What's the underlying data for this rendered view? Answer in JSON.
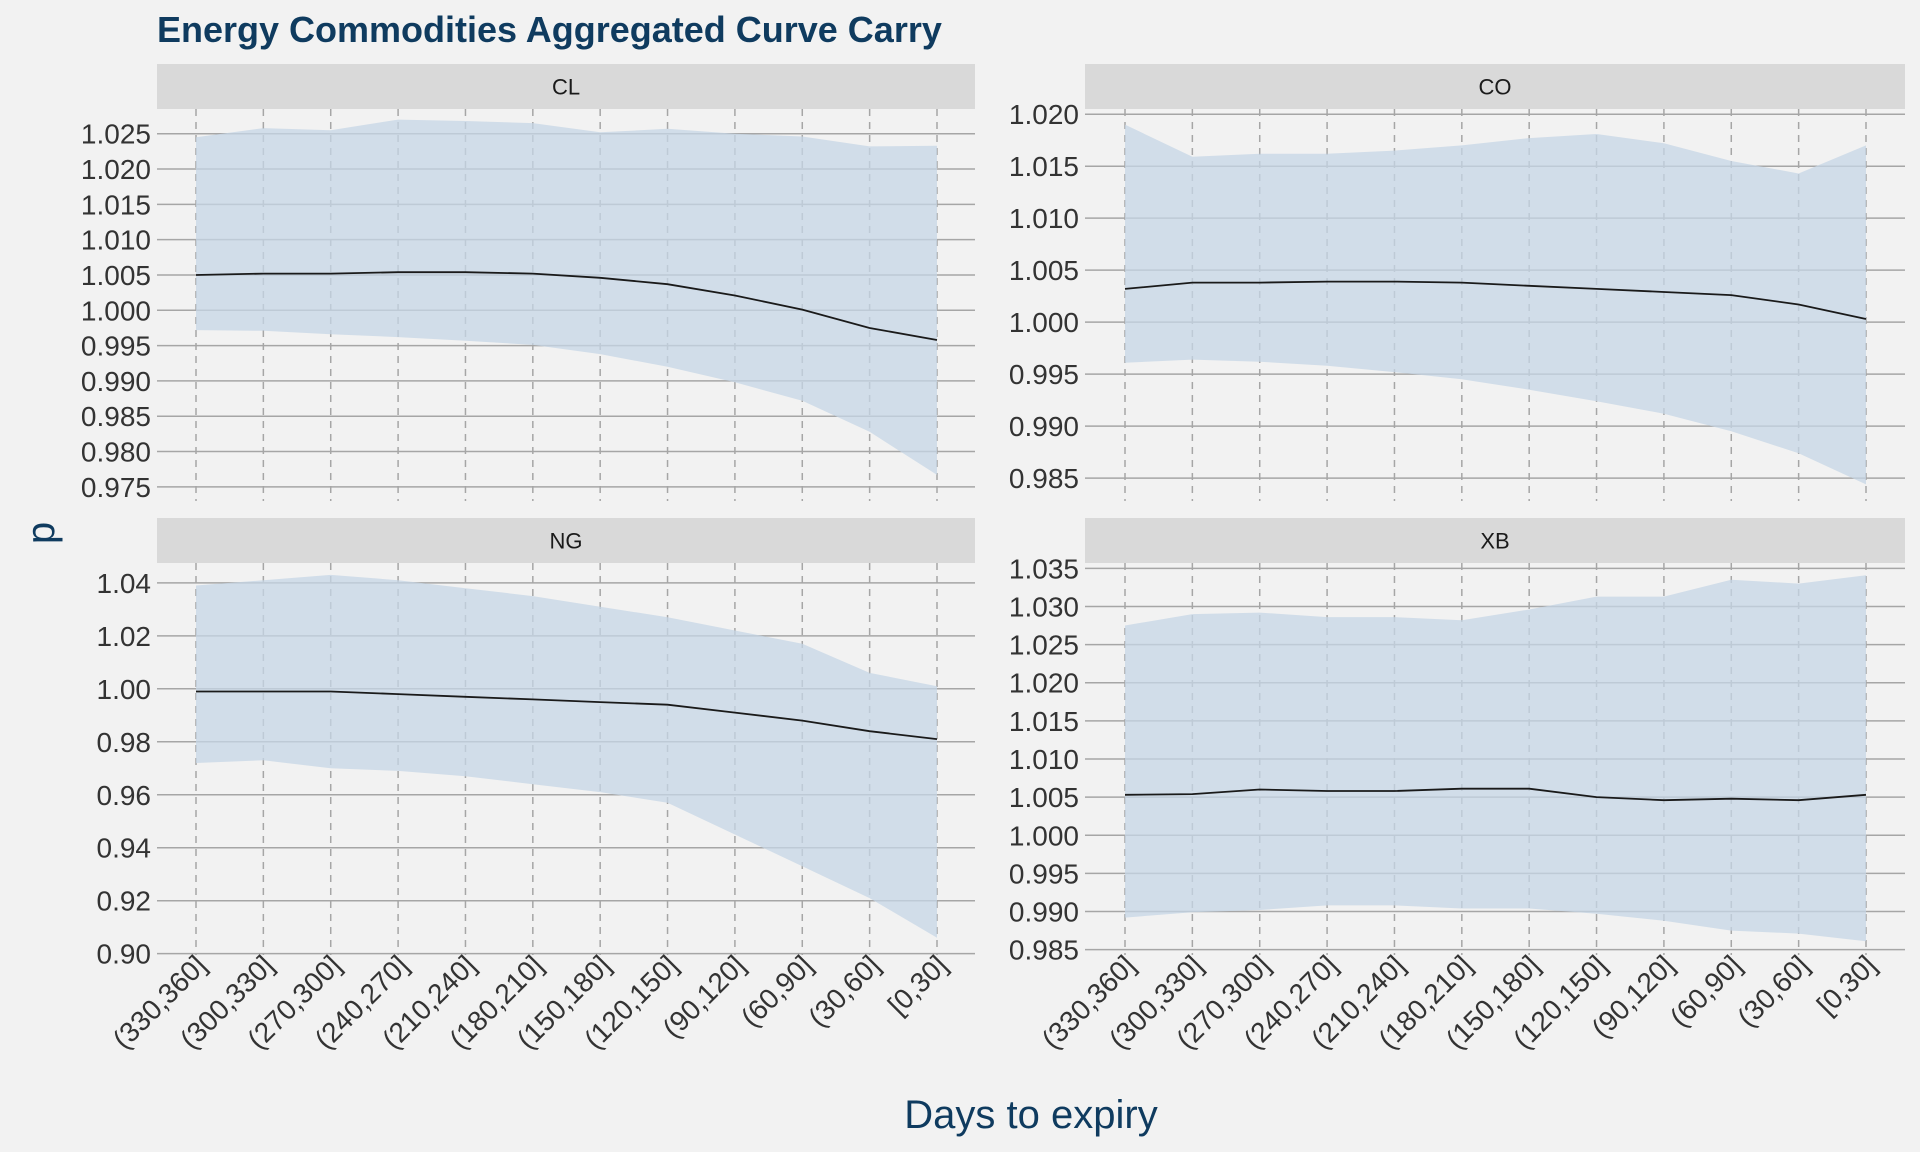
{
  "chart_data": {
    "type": "line",
    "title": "Energy Commodities Aggregated Curve Carry",
    "xlabel": "Days to expiry",
    "ylabel": "p",
    "categories": [
      "(330,360]",
      "(300,330]",
      "(270,300]",
      "(240,270]",
      "(210,240]",
      "(180,210]",
      "(150,180]",
      "(120,150]",
      "(90,120]",
      "(60,90]",
      "(30,60]",
      "[0,30]"
    ],
    "grid": true,
    "colors": {
      "band": "#c5d6e6",
      "line": "#1a1a1a",
      "strip": "#d9d9d9",
      "panel_bg": "#f2f2f2",
      "gridline": "#a6a6a6",
      "title": "#0f3b5f"
    },
    "panels": [
      {
        "name": "CL",
        "ylim": [
          0.973,
          1.0285
        ],
        "yticks": [
          "0.975",
          "0.980",
          "0.985",
          "0.990",
          "0.995",
          "1.000",
          "1.005",
          "1.010",
          "1.015",
          "1.020",
          "1.025"
        ],
        "mid": [
          1.005,
          1.0052,
          1.0052,
          1.0054,
          1.0054,
          1.0052,
          1.0046,
          1.0037,
          1.0021,
          1.0001,
          0.9975,
          0.9958
        ],
        "upper": [
          1.0245,
          1.0258,
          1.0255,
          1.027,
          1.0268,
          1.0265,
          1.0252,
          1.0257,
          1.025,
          1.0246,
          1.0232,
          1.0233
        ],
        "lower": [
          0.9972,
          0.9971,
          0.9966,
          0.9962,
          0.9957,
          0.9951,
          0.9938,
          0.992,
          0.9898,
          0.9872,
          0.9828,
          0.9767
        ]
      },
      {
        "name": "CO",
        "ylim": [
          0.9828,
          1.0205
        ],
        "yticks": [
          "0.985",
          "0.990",
          "0.995",
          "1.000",
          "1.005",
          "1.010",
          "1.015",
          "1.020"
        ],
        "mid": [
          1.0032,
          1.0038,
          1.0038,
          1.0039,
          1.0039,
          1.0038,
          1.0035,
          1.0032,
          1.0029,
          1.0026,
          1.0017,
          1.0003
        ],
        "upper": [
          1.019,
          1.0159,
          1.0162,
          1.0162,
          1.0165,
          1.017,
          1.0177,
          1.0181,
          1.0172,
          1.0155,
          1.0143,
          1.017
        ],
        "lower": [
          0.9961,
          0.9964,
          0.9962,
          0.9958,
          0.9952,
          0.9945,
          0.9935,
          0.9924,
          0.9912,
          0.9895,
          0.9874,
          0.9844
        ]
      },
      {
        "name": "NG",
        "ylim": [
          0.8995,
          1.0475
        ],
        "yticks": [
          "0.90",
          "0.92",
          "0.94",
          "0.96",
          "0.98",
          "1.00",
          "1.02",
          "1.04"
        ],
        "mid": [
          0.999,
          0.999,
          0.999,
          0.998,
          0.997,
          0.996,
          0.995,
          0.994,
          0.991,
          0.988,
          0.984,
          0.981
        ],
        "upper": [
          1.039,
          1.041,
          1.043,
          1.041,
          1.038,
          1.035,
          1.031,
          1.027,
          1.022,
          1.017,
          1.006,
          1.001
        ],
        "lower": [
          0.972,
          0.973,
          0.97,
          0.969,
          0.967,
          0.964,
          0.961,
          0.957,
          0.945,
          0.933,
          0.921,
          0.906
        ]
      },
      {
        "name": "XB",
        "ylim": [
          0.9843,
          1.0357
        ],
        "yticks": [
          "0.985",
          "0.990",
          "0.995",
          "1.000",
          "1.005",
          "1.010",
          "1.015",
          "1.020",
          "1.025",
          "1.030",
          "1.035"
        ],
        "mid": [
          1.0053,
          1.0054,
          1.006,
          1.0058,
          1.0058,
          1.0061,
          1.0061,
          1.005,
          1.0046,
          1.0048,
          1.0046,
          1.0053
        ],
        "upper": [
          1.0275,
          1.029,
          1.0292,
          1.0286,
          1.0286,
          1.0282,
          1.0296,
          1.0313,
          1.0313,
          1.0335,
          1.033,
          1.0341
        ],
        "lower": [
          0.9892,
          0.9899,
          0.9902,
          0.9908,
          0.9908,
          0.9904,
          0.9904,
          0.9897,
          0.9888,
          0.9875,
          0.9871,
          0.9861
        ]
      }
    ]
  }
}
